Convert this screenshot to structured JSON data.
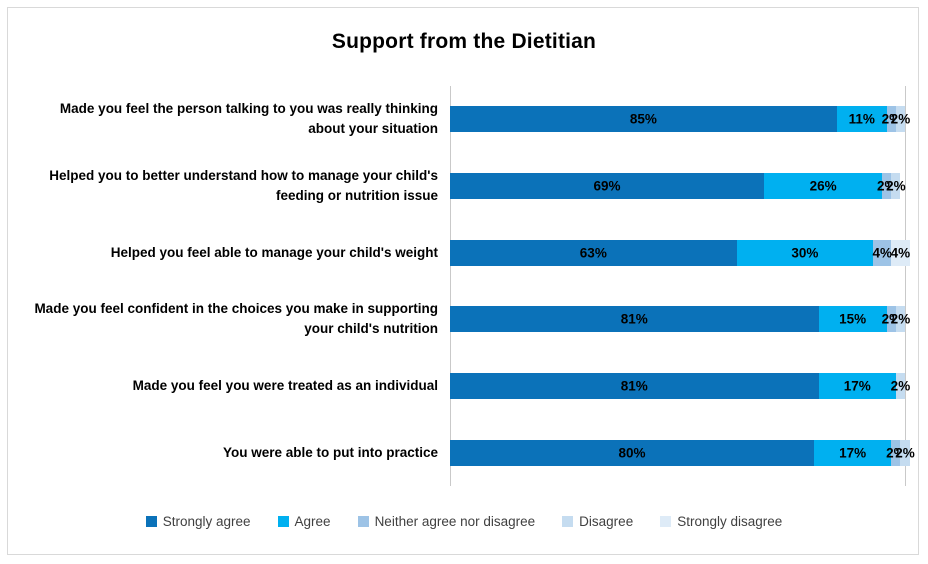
{
  "frame": {
    "border_color": "#D9D9D9"
  },
  "chart_data": {
    "type": "bar",
    "orientation": "horizontal",
    "stacked": true,
    "title": "Support from the Dietitian",
    "categories": [
      "Made you feel the person talking to you was really thinking about your situation",
      "Helped you to better understand how to manage your child's feeding or nutrition issue",
      "Helped you feel able to manage your child's weight",
      "Made you feel confident in the choices you make in supporting your child's nutrition",
      "Made you feel you were treated as an individual",
      "You were able to put into practice"
    ],
    "series": [
      {
        "name": "Strongly agree",
        "color": "#0B72B9",
        "values": [
          85,
          69,
          63,
          81,
          81,
          80
        ]
      },
      {
        "name": "Agree",
        "color": "#00B0F0",
        "values": [
          11,
          26,
          30,
          15,
          17,
          17
        ]
      },
      {
        "name": "Neither agree nor disagree",
        "color": "#9DC3E6",
        "values": [
          2,
          2,
          4,
          2,
          0,
          2
        ]
      },
      {
        "name": "Disagree",
        "color": "#C5DCF0",
        "values": [
          2,
          2,
          0,
          2,
          2,
          2
        ]
      },
      {
        "name": "Strongly disagree",
        "color": "#DEEBF7",
        "values": [
          0,
          0,
          4,
          0,
          0,
          0
        ]
      }
    ],
    "xlim": [
      0,
      100
    ],
    "value_suffix": "%",
    "data_labels": true,
    "legend_position": "bottom",
    "axis_line_color": "#C9C9C9",
    "legend_text_color": "#404040"
  }
}
